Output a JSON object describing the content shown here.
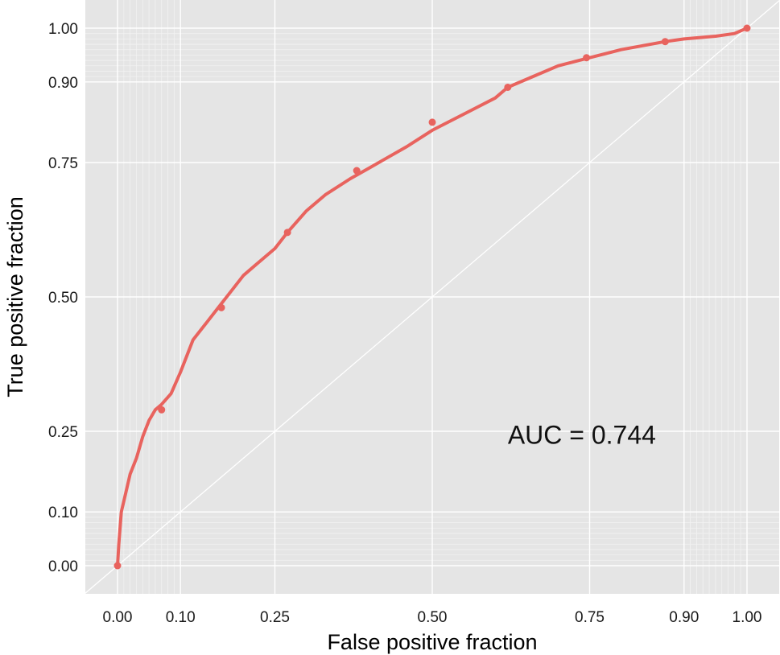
{
  "chart_data": {
    "type": "line",
    "xlabel": "False positive fraction",
    "ylabel": "True positive fraction",
    "xlim": [
      0,
      1
    ],
    "ylim": [
      0,
      1
    ],
    "x_ticks": [
      {
        "value": 0.0,
        "label": "0.00"
      },
      {
        "value": 0.1,
        "label": "0.10"
      },
      {
        "value": 0.25,
        "label": "0.25"
      },
      {
        "value": 0.5,
        "label": "0.50"
      },
      {
        "value": 0.75,
        "label": "0.75"
      },
      {
        "value": 0.9,
        "label": "0.90"
      },
      {
        "value": 1.0,
        "label": "1.00"
      }
    ],
    "y_ticks": [
      {
        "value": 0.0,
        "label": "0.00"
      },
      {
        "value": 0.1,
        "label": "0.10"
      },
      {
        "value": 0.25,
        "label": "0.25"
      },
      {
        "value": 0.5,
        "label": "0.50"
      },
      {
        "value": 0.75,
        "label": "0.75"
      },
      {
        "value": 0.9,
        "label": "0.90"
      },
      {
        "value": 1.0,
        "label": "1.00"
      }
    ],
    "minor_grid": [
      0.01,
      0.02,
      0.03,
      0.04,
      0.05,
      0.06,
      0.07,
      0.08,
      0.09,
      0.91,
      0.92,
      0.93,
      0.94,
      0.95,
      0.96,
      0.97,
      0.98,
      0.99
    ],
    "grid": true,
    "reference_line": {
      "x": [
        0,
        1
      ],
      "y": [
        0,
        1
      ]
    },
    "series": [
      {
        "color": "#e8635e",
        "x": [
          0.0,
          0.002,
          0.006,
          0.012,
          0.02,
          0.03,
          0.04,
          0.05,
          0.06,
          0.07,
          0.085,
          0.1,
          0.12,
          0.14,
          0.16,
          0.18,
          0.2,
          0.22,
          0.25,
          0.27,
          0.3,
          0.33,
          0.37,
          0.4,
          0.43,
          0.46,
          0.5,
          0.55,
          0.6,
          0.62,
          0.66,
          0.7,
          0.75,
          0.8,
          0.87,
          0.9,
          0.95,
          0.98,
          1.0
        ],
        "y": [
          0.0,
          0.04,
          0.1,
          0.13,
          0.17,
          0.2,
          0.24,
          0.27,
          0.29,
          0.3,
          0.32,
          0.36,
          0.42,
          0.45,
          0.48,
          0.51,
          0.54,
          0.56,
          0.59,
          0.62,
          0.66,
          0.69,
          0.72,
          0.74,
          0.76,
          0.78,
          0.81,
          0.84,
          0.87,
          0.89,
          0.91,
          0.93,
          0.945,
          0.96,
          0.975,
          0.98,
          0.985,
          0.99,
          1.0
        ]
      }
    ],
    "markers": [
      {
        "x": 0.0,
        "y": 0.0
      },
      {
        "x": 0.07,
        "y": 0.29
      },
      {
        "x": 0.165,
        "y": 0.48
      },
      {
        "x": 0.27,
        "y": 0.62
      },
      {
        "x": 0.38,
        "y": 0.735
      },
      {
        "x": 0.5,
        "y": 0.825
      },
      {
        "x": 0.62,
        "y": 0.89
      },
      {
        "x": 0.745,
        "y": 0.945
      },
      {
        "x": 0.87,
        "y": 0.975
      },
      {
        "x": 1.0,
        "y": 1.0
      }
    ],
    "annotations": [
      {
        "text": "AUC = 0.744",
        "x": 0.62,
        "y": 0.245
      }
    ]
  }
}
